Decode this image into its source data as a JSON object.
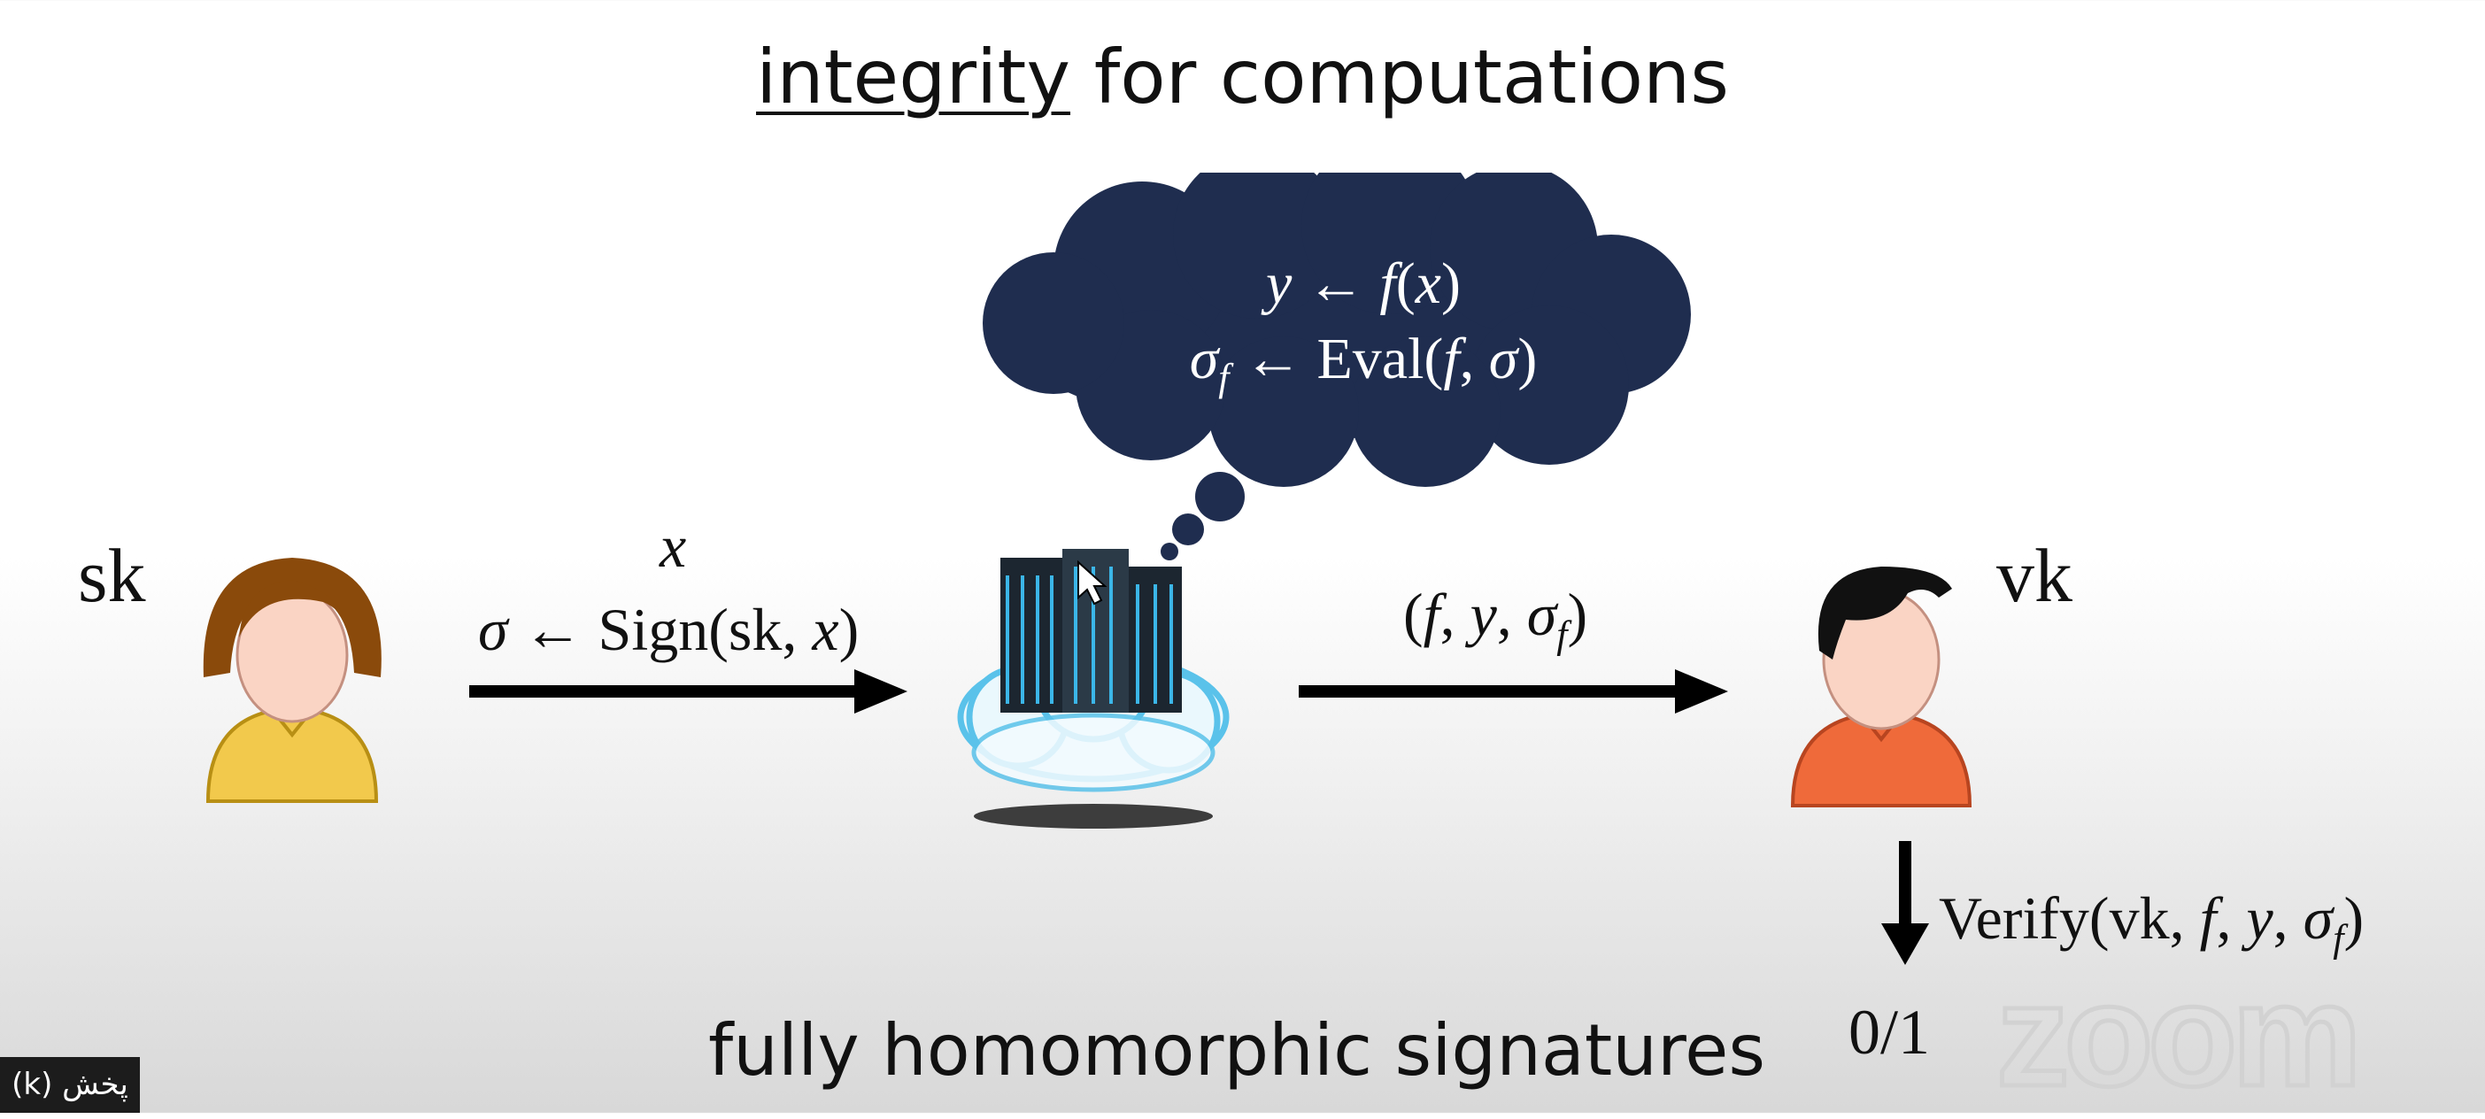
{
  "title": {
    "underlined": "integrity",
    "rest": " for computations"
  },
  "thought": {
    "line1": "y ← f(x)",
    "line2": "σ_f ← Eval(f, σ)"
  },
  "left": {
    "key_label": "sk"
  },
  "right": {
    "key_label": "vk"
  },
  "arrow_left": {
    "top": "x",
    "bottom": "σ ← Sign(sk, x)"
  },
  "arrow_right": {
    "label": "(f, y, σ_f)"
  },
  "verify": {
    "label": "Verify(vk, f, y, σ_f)",
    "result": "0/1"
  },
  "bottom_title": "fully homomorphic signatures",
  "watermark": "zoom",
  "badge": "پخش (k)",
  "colors": {
    "cloud": "#1f2d4f",
    "alice_hair": "#8a4a0b",
    "alice_shirt": "#f2c94c",
    "bob_hair": "#111111",
    "bob_shirt": "#ef6a3a",
    "skin": "#fad4c4"
  }
}
